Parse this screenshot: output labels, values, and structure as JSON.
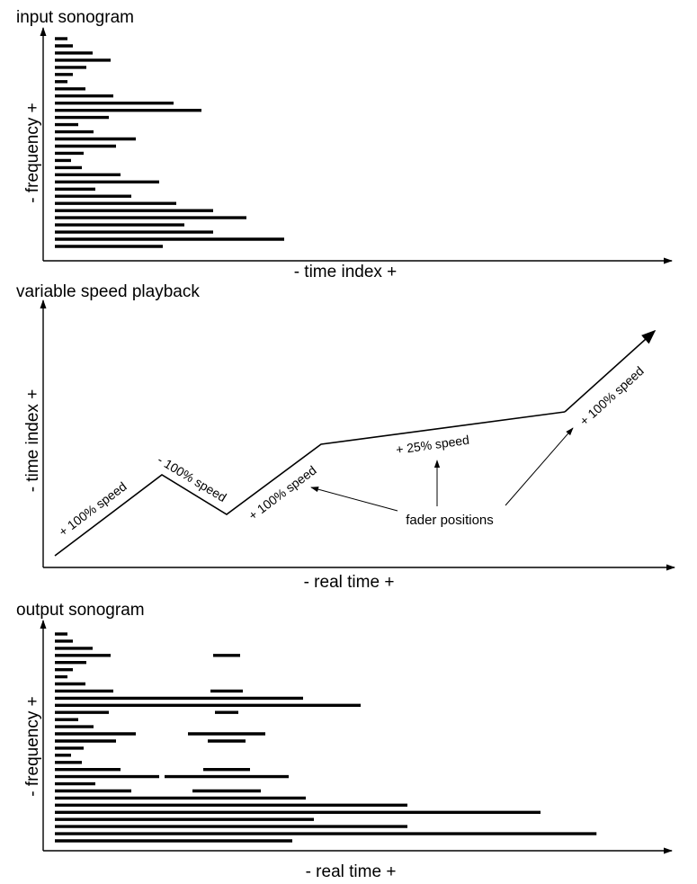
{
  "input_sonogram": {
    "title": "input sonogram",
    "ylabel": "- frequency +",
    "xlabel": "- time index +",
    "bar_lengths": [
      14,
      20,
      42,
      62,
      35,
      20,
      14,
      34,
      65,
      132,
      163,
      60,
      26,
      43,
      90,
      68,
      32,
      18,
      30,
      73,
      116,
      45,
      85,
      135,
      176,
      213,
      144,
      176,
      255,
      120
    ]
  },
  "playback": {
    "title": "variable speed playback",
    "ylabel": "- time index +",
    "xlabel": "- real time +",
    "segments": [
      {
        "label": "+ 100% speed",
        "speed": 100
      },
      {
        "label": "- 100% speed",
        "speed": -100
      },
      {
        "label": "+ 100% speed",
        "speed": 100
      },
      {
        "label": "+ 25% speed",
        "speed": 25
      },
      {
        "label": "+ 100% speed",
        "speed": 100
      }
    ],
    "callout": "fader positions"
  },
  "output_sonogram": {
    "title": "output sonogram",
    "ylabel": "- frequency +",
    "xlabel": "- real time +"
  }
}
